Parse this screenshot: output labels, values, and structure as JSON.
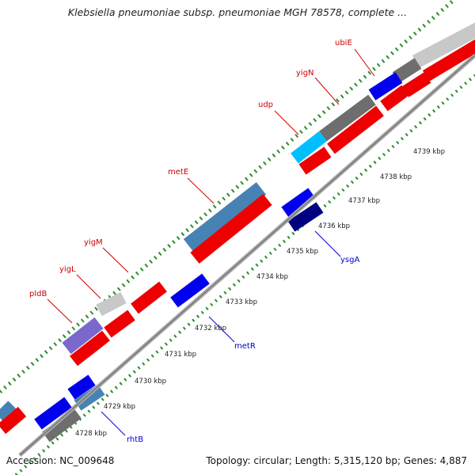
{
  "title": "Klebsiella pneumoniae subsp. pneumoniae MGH 78578, complete ...",
  "footer": {
    "accession": "Accession: NC_009648",
    "info": "Topology: circular; Length: 5,315,120 bp; Genes: 4,887"
  },
  "colors": {
    "plus_label": "#cc0000",
    "minus_label": "#0000cc",
    "red": "#ee0000",
    "grey": "#c8c8c8",
    "dark_grey": "#6e6e6e",
    "steel_blue": "#4682b4",
    "blue": "#0000ee",
    "navy": "#000080",
    "light_blue": "#00bfff",
    "purple": "#7b68cc",
    "tick": "#2e8b2e"
  },
  "ticks": [
    "4728 kbp",
    "4729 kbp",
    "4730 kbp",
    "4731 kbp",
    "4732 kbp",
    "4733 kbp",
    "4734 kbp",
    "4735 kbp",
    "4736 kbp",
    "4737 kbp",
    "4738 kbp",
    "4739 kbp"
  ],
  "labels": [
    {
      "name": "ubiE",
      "strand": "plus"
    },
    {
      "name": "yigN",
      "strand": "plus"
    },
    {
      "name": "udp",
      "strand": "plus"
    },
    {
      "name": "metE",
      "strand": "plus"
    },
    {
      "name": "yigM",
      "strand": "plus"
    },
    {
      "name": "yigL",
      "strand": "plus"
    },
    {
      "name": "pldB",
      "strand": "plus"
    },
    {
      "name": "ysgA",
      "strand": "minus"
    },
    {
      "name": "metR",
      "strand": "minus"
    },
    {
      "name": "rhtB",
      "strand": "minus"
    }
  ]
}
